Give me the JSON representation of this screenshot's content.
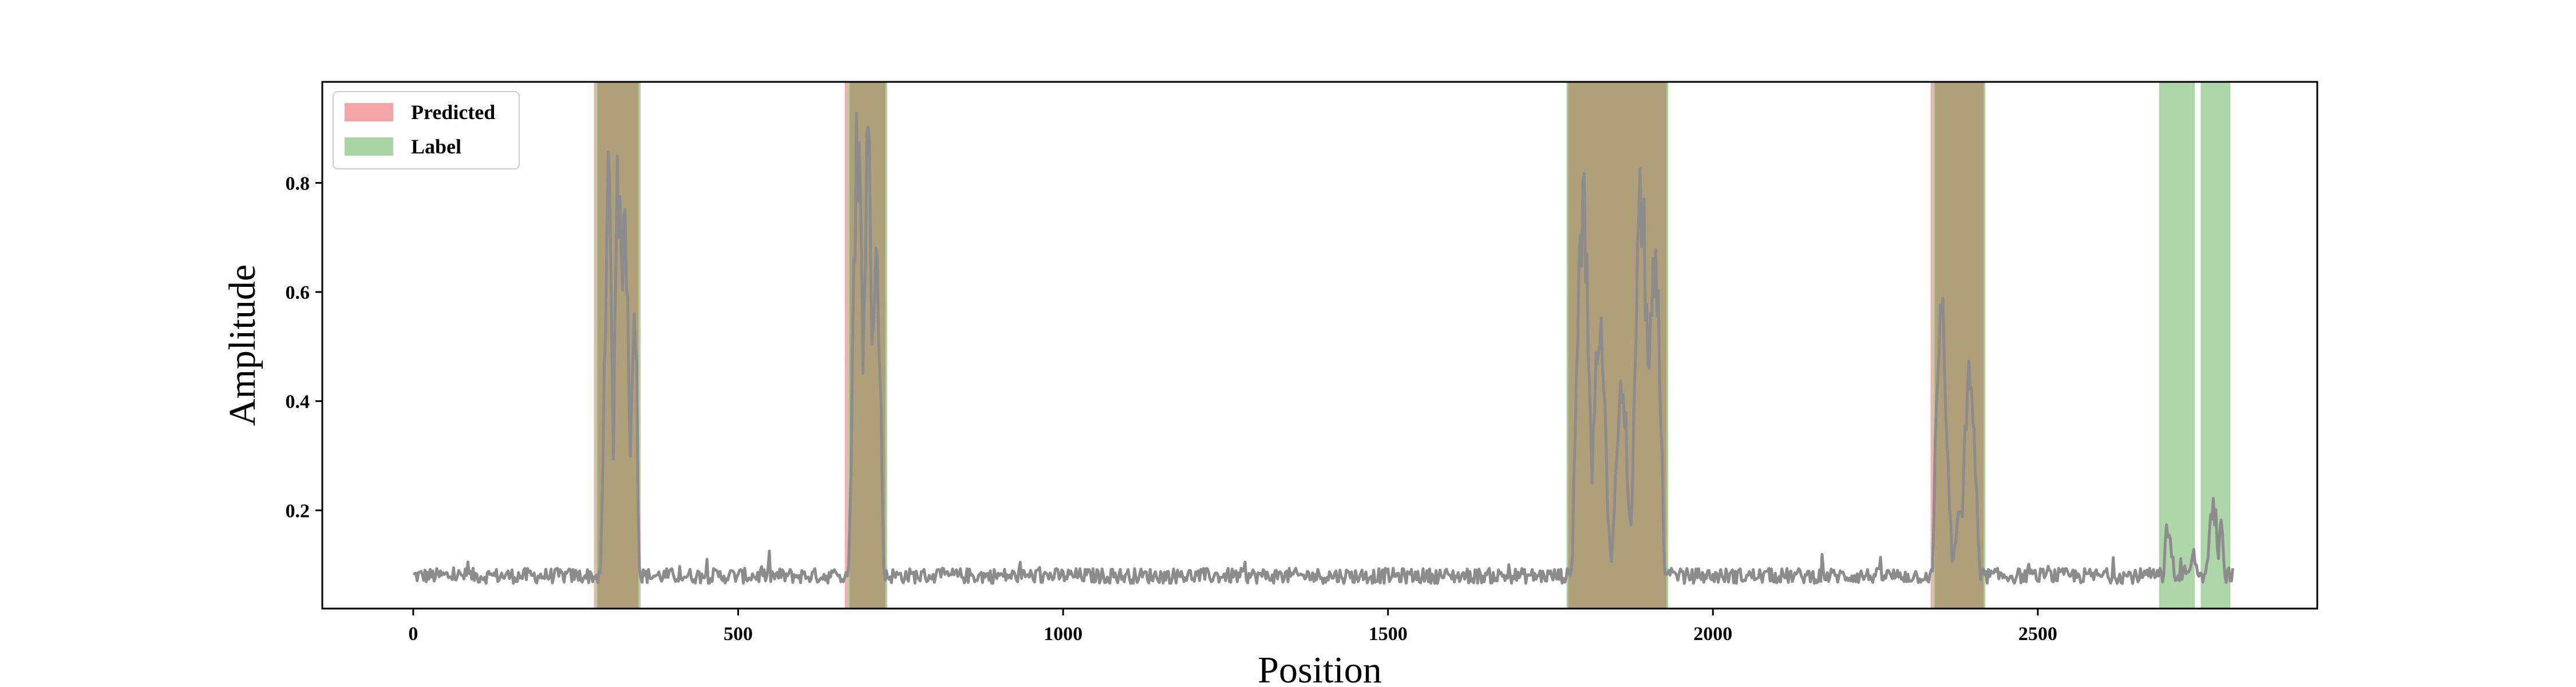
{
  "chart_data": {
    "type": "line",
    "title": "",
    "xlabel": "Position",
    "ylabel": "Amplitude",
    "xlim": [
      -140,
      2930
    ],
    "ylim": [
      0.02,
      0.985
    ],
    "x_ticks": [
      0,
      500,
      1000,
      1500,
      2000,
      2500
    ],
    "y_ticks": [
      0.2,
      0.4,
      0.6,
      0.8
    ],
    "x_tick_labels": [
      "0",
      "500",
      "1000",
      "1500",
      "2000",
      "2500"
    ],
    "y_tick_labels": [
      "0.2",
      "0.4",
      "0.6",
      "0.8"
    ],
    "grid": false,
    "legend": {
      "placement": "top-left",
      "entries": [
        {
          "label": "Predicted",
          "color": "#f4a6a6"
        },
        {
          "label": "Label",
          "color": "#a9d4a4"
        }
      ]
    },
    "predicted_regions": [
      [
        278,
        350
      ],
      [
        664,
        728
      ],
      [
        1780,
        1928
      ],
      [
        2335,
        2418
      ]
    ],
    "label_regions": [
      [
        282,
        348
      ],
      [
        670,
        728
      ],
      [
        1776,
        1930
      ],
      [
        2340,
        2418
      ],
      [
        2688,
        2740
      ],
      [
        2752,
        2795
      ]
    ],
    "overlap_color": "#b0a07a",
    "signal_color": "#8c8c8c",
    "baseline_level": 0.08,
    "bursts": [
      {
        "range": [
          278,
          350
        ],
        "peaks": [
          [
            300,
            0.82
          ],
          [
            316,
            0.86
          ],
          [
            326,
            0.78
          ],
          [
            340,
            0.62
          ]
        ]
      },
      {
        "range": [
          664,
          728
        ],
        "peaks": [
          [
            684,
            0.94
          ],
          [
            700,
            0.92
          ],
          [
            712,
            0.75
          ]
        ]
      },
      {
        "range": [
          1780,
          1928
        ],
        "peaks": [
          [
            1800,
            0.8
          ],
          [
            1825,
            0.6
          ],
          [
            1860,
            0.45
          ],
          [
            1890,
            0.83
          ],
          [
            1910,
            0.7
          ]
        ]
      },
      {
        "range": [
          2335,
          2418
        ],
        "peaks": [
          [
            2352,
            0.59
          ],
          [
            2380,
            0.2
          ],
          [
            2395,
            0.49
          ]
        ]
      },
      {
        "range": [
          2690,
          2790
        ],
        "peaks": [
          [
            2700,
            0.18
          ],
          [
            2740,
            0.13
          ],
          [
            2770,
            0.22
          ],
          [
            2785,
            0.19
          ]
        ]
      }
    ],
    "series": [
      {
        "x": [
          0,
          100,
          200,
          278,
          300,
          316,
          326,
          340,
          350,
          500,
          664,
          684,
          700,
          712,
          728,
          1000,
          1500,
          1780,
          1800,
          1825,
          1860,
          1890,
          1910,
          1928,
          2000,
          2335,
          2352,
          2380,
          2395,
          2418,
          2600,
          2700,
          2740,
          2770,
          2785,
          2800
        ],
        "y": [
          0.085,
          0.08,
          0.085,
          0.09,
          0.82,
          0.86,
          0.78,
          0.62,
          0.09,
          0.08,
          0.09,
          0.94,
          0.92,
          0.75,
          0.09,
          0.075,
          0.078,
          0.08,
          0.8,
          0.6,
          0.45,
          0.83,
          0.7,
          0.09,
          0.08,
          0.09,
          0.59,
          0.2,
          0.49,
          0.09,
          0.08,
          0.18,
          0.13,
          0.22,
          0.19,
          0.08
        ]
      }
    ]
  }
}
